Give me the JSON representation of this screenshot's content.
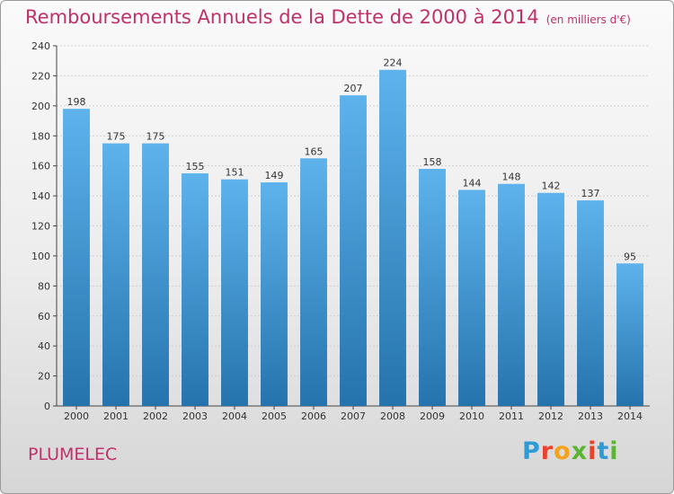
{
  "header": {
    "title": "Remboursements Annuels de la Dette de 2000 à 2014",
    "subtitle": "(en milliers d'€)"
  },
  "footer": {
    "commune": "PLUMELEC",
    "logo_letters": [
      "P",
      "r",
      "o",
      "x",
      "i",
      "t",
      "i"
    ],
    "logo_colors": [
      "#2e9bd6",
      "#e8412c",
      "#f4a21c",
      "#5bb531",
      "#e8412c",
      "#2e9bd6",
      "#5bb531"
    ]
  },
  "chart_data": {
    "type": "bar",
    "categories": [
      "2000",
      "2001",
      "2002",
      "2003",
      "2004",
      "2005",
      "2006",
      "2007",
      "2008",
      "2009",
      "2010",
      "2011",
      "2012",
      "2013",
      "2014"
    ],
    "values": [
      198,
      175,
      175,
      155,
      151,
      149,
      165,
      207,
      224,
      158,
      144,
      148,
      142,
      137,
      95
    ],
    "title": "Remboursements Annuels de la Dette de 2000 à 2014",
    "subtitle": "(en milliers d'€)",
    "ylim": [
      0,
      240
    ],
    "yticks": [
      0,
      20,
      40,
      60,
      80,
      100,
      120,
      140,
      160,
      180,
      200,
      220,
      240
    ],
    "grid": true,
    "colors": {
      "bar_top": "#5eb3ec",
      "bar_bottom": "#2573ad",
      "grid": "#cfcfcf",
      "axis": "#444444",
      "text": "#333333"
    }
  }
}
